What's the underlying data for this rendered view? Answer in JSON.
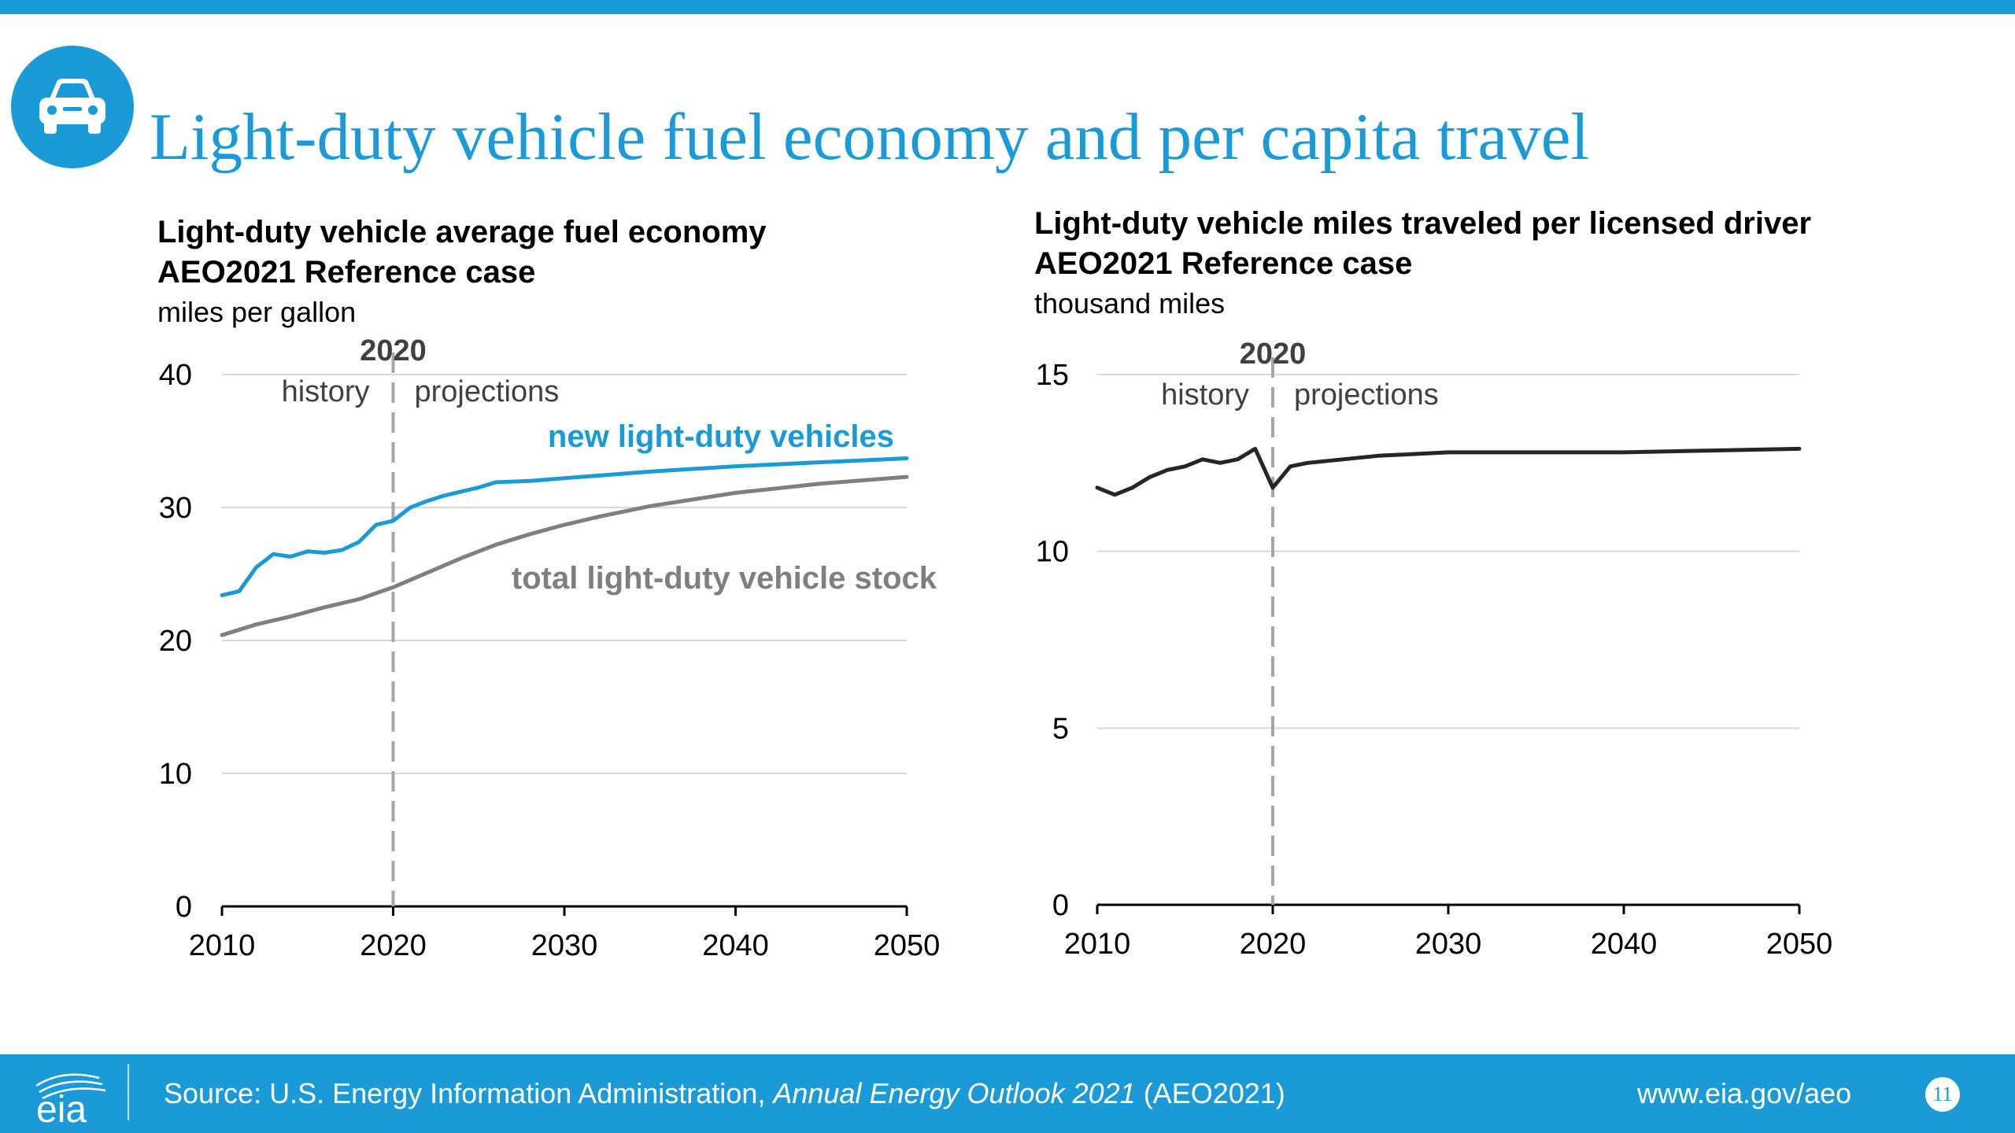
{
  "page": {
    "title": "Light-duty vehicle fuel economy and per capita travel",
    "footer": {
      "source_prefix": "Source: U.S. Energy Information Administration, ",
      "source_italic": "Annual Energy Outlook 2021",
      "source_suffix": " (AEO2021)",
      "url": "www.eia.gov/aeo",
      "page_number": "11",
      "logo_text": "eia"
    }
  },
  "colors": {
    "accent": "#1a9ad6",
    "gray_series": "#7f7f7f",
    "dark_series": "#262626"
  },
  "chart_data": [
    {
      "type": "line",
      "title_line1": "Light-duty vehicle average fuel economy",
      "title_line2": "AEO2021 Reference case",
      "units": "miles per gallon",
      "ylim": [
        0,
        40
      ],
      "yticks": [
        0,
        10,
        20,
        30,
        40
      ],
      "xlim": [
        2010,
        2050
      ],
      "xticks": [
        2010,
        2020,
        2030,
        2040,
        2050
      ],
      "grid": true,
      "divider_year": 2020,
      "divider_label": "2020",
      "history_label": "history",
      "projections_label": "projections",
      "series": [
        {
          "name": "new light-duty vehicles",
          "color": "#1a9ad6",
          "points": [
            [
              2010,
              23.4
            ],
            [
              2011,
              23.7
            ],
            [
              2012,
              25.5
            ],
            [
              2013,
              26.5
            ],
            [
              2014,
              26.3
            ],
            [
              2015,
              26.7
            ],
            [
              2016,
              26.6
            ],
            [
              2017,
              26.8
            ],
            [
              2018,
              27.4
            ],
            [
              2019,
              28.7
            ],
            [
              2020,
              29.0
            ],
            [
              2021,
              30.0
            ],
            [
              2022,
              30.5
            ],
            [
              2023,
              30.9
            ],
            [
              2024,
              31.2
            ],
            [
              2025,
              31.5
            ],
            [
              2026,
              31.9
            ],
            [
              2028,
              32.0
            ],
            [
              2030,
              32.2
            ],
            [
              2035,
              32.7
            ],
            [
              2040,
              33.1
            ],
            [
              2045,
              33.4
            ],
            [
              2050,
              33.7
            ]
          ]
        },
        {
          "name": "total light-duty vehicle stock",
          "color": "#7f7f7f",
          "points": [
            [
              2010,
              20.4
            ],
            [
              2012,
              21.2
            ],
            [
              2014,
              21.8
            ],
            [
              2016,
              22.5
            ],
            [
              2018,
              23.1
            ],
            [
              2020,
              24.0
            ],
            [
              2022,
              25.1
            ],
            [
              2024,
              26.2
            ],
            [
              2026,
              27.2
            ],
            [
              2028,
              28.0
            ],
            [
              2030,
              28.7
            ],
            [
              2032,
              29.3
            ],
            [
              2035,
              30.1
            ],
            [
              2040,
              31.1
            ],
            [
              2045,
              31.8
            ],
            [
              2050,
              32.3
            ]
          ]
        }
      ]
    },
    {
      "type": "line",
      "title_line1": "Light-duty vehicle miles traveled per licensed driver",
      "title_line2": "AEO2021 Reference case",
      "units": "thousand miles",
      "ylim": [
        0,
        15
      ],
      "yticks": [
        0,
        5,
        10,
        15
      ],
      "xlim": [
        2010,
        2050
      ],
      "xticks": [
        2010,
        2020,
        2030,
        2040,
        2050
      ],
      "grid": true,
      "divider_year": 2020,
      "divider_label": "2020",
      "history_label": "history",
      "projections_label": "projections",
      "series": [
        {
          "name": "",
          "color": "#262626",
          "points": [
            [
              2010,
              11.8
            ],
            [
              2011,
              11.6
            ],
            [
              2012,
              11.8
            ],
            [
              2013,
              12.1
            ],
            [
              2014,
              12.3
            ],
            [
              2015,
              12.4
            ],
            [
              2016,
              12.6
            ],
            [
              2017,
              12.5
            ],
            [
              2018,
              12.6
            ],
            [
              2019,
              12.9
            ],
            [
              2020,
              11.8
            ],
            [
              2021,
              12.4
            ],
            [
              2022,
              12.5
            ],
            [
              2024,
              12.6
            ],
            [
              2026,
              12.7
            ],
            [
              2028,
              12.75
            ],
            [
              2030,
              12.8
            ],
            [
              2035,
              12.8
            ],
            [
              2040,
              12.8
            ],
            [
              2045,
              12.85
            ],
            [
              2050,
              12.9
            ]
          ]
        }
      ]
    }
  ]
}
